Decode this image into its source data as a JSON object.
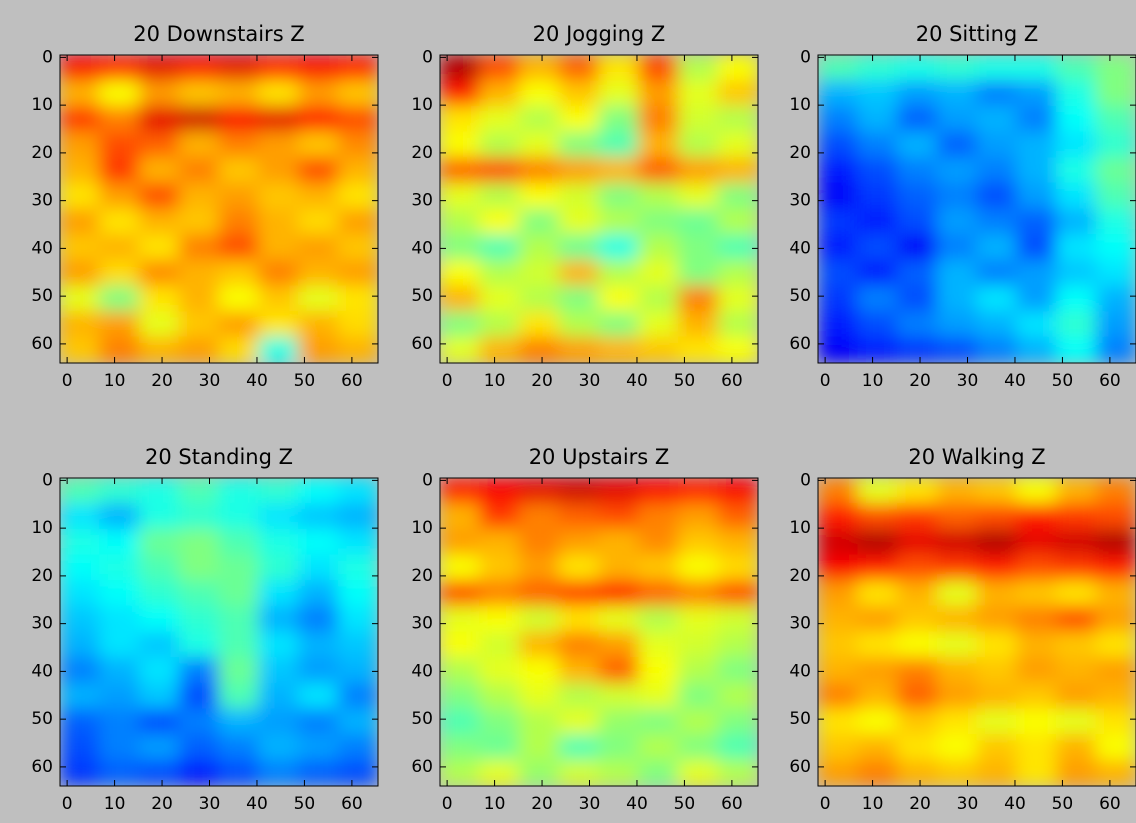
{
  "chart_data": [
    {
      "type": "heatmap",
      "title": "20 Downstairs Z",
      "colormap": "jet",
      "xlim": [
        -1.5,
        65.5
      ],
      "ylim": [
        64,
        -0.5
      ],
      "xticks": [
        0,
        10,
        20,
        30,
        40,
        50,
        60
      ],
      "yticks": [
        0,
        10,
        20,
        30,
        40,
        50,
        60
      ],
      "values": [
        [
          0.88,
          0.85,
          0.9,
          0.88,
          0.9,
          0.85,
          0.88,
          0.85
        ],
        [
          0.7,
          0.62,
          0.72,
          0.68,
          0.7,
          0.65,
          0.72,
          0.68
        ],
        [
          0.82,
          0.75,
          0.9,
          0.92,
          0.88,
          0.9,
          0.85,
          0.8
        ],
        [
          0.72,
          0.8,
          0.78,
          0.7,
          0.75,
          0.72,
          0.68,
          0.74
        ],
        [
          0.7,
          0.82,
          0.7,
          0.75,
          0.68,
          0.72,
          0.8,
          0.7
        ],
        [
          0.65,
          0.72,
          0.8,
          0.7,
          0.72,
          0.68,
          0.7,
          0.65
        ],
        [
          0.72,
          0.65,
          0.7,
          0.68,
          0.75,
          0.7,
          0.66,
          0.72
        ],
        [
          0.68,
          0.7,
          0.65,
          0.75,
          0.8,
          0.7,
          0.72,
          0.68
        ],
        [
          0.72,
          0.66,
          0.74,
          0.7,
          0.68,
          0.75,
          0.7,
          0.72
        ],
        [
          0.6,
          0.5,
          0.65,
          0.7,
          0.62,
          0.68,
          0.6,
          0.65
        ],
        [
          0.7,
          0.72,
          0.6,
          0.68,
          0.72,
          0.65,
          0.7,
          0.66
        ],
        [
          0.68,
          0.75,
          0.7,
          0.72,
          0.66,
          0.4,
          0.72,
          0.7
        ]
      ]
    },
    {
      "type": "heatmap",
      "title": "20 Jogging Z",
      "colormap": "jet",
      "xlim": [
        -1.5,
        65.5
      ],
      "ylim": [
        64,
        -0.5
      ],
      "xticks": [
        0,
        10,
        20,
        30,
        40,
        50,
        60
      ],
      "yticks": [
        0,
        10,
        20,
        30,
        40,
        50,
        60
      ],
      "values": [
        [
          0.95,
          0.8,
          0.7,
          0.78,
          0.65,
          0.8,
          0.55,
          0.62
        ],
        [
          0.85,
          0.7,
          0.62,
          0.68,
          0.6,
          0.72,
          0.6,
          0.68
        ],
        [
          0.65,
          0.6,
          0.55,
          0.62,
          0.5,
          0.75,
          0.58,
          0.55
        ],
        [
          0.62,
          0.55,
          0.6,
          0.5,
          0.45,
          0.7,
          0.55,
          0.6
        ],
        [
          0.78,
          0.8,
          0.75,
          0.72,
          0.7,
          0.78,
          0.72,
          0.7
        ],
        [
          0.6,
          0.55,
          0.62,
          0.58,
          0.5,
          0.55,
          0.6,
          0.5
        ],
        [
          0.55,
          0.62,
          0.5,
          0.6,
          0.55,
          0.5,
          0.48,
          0.55
        ],
        [
          0.5,
          0.45,
          0.55,
          0.48,
          0.4,
          0.55,
          0.5,
          0.45
        ],
        [
          0.62,
          0.55,
          0.58,
          0.7,
          0.55,
          0.6,
          0.5,
          0.55
        ],
        [
          0.7,
          0.6,
          0.55,
          0.5,
          0.62,
          0.55,
          0.75,
          0.6
        ],
        [
          0.5,
          0.55,
          0.65,
          0.55,
          0.5,
          0.6,
          0.7,
          0.55
        ],
        [
          0.6,
          0.7,
          0.75,
          0.72,
          0.7,
          0.68,
          0.65,
          0.62
        ]
      ]
    },
    {
      "type": "heatmap",
      "title": "20 Sitting Z",
      "colormap": "jet",
      "xlim": [
        -1.5,
        65.5
      ],
      "ylim": [
        64,
        -0.5
      ],
      "xticks": [
        0,
        10,
        20,
        30,
        40,
        50,
        60
      ],
      "yticks": [
        0,
        10,
        20,
        30,
        40,
        50,
        60
      ],
      "values": [
        [
          0.45,
          0.42,
          0.4,
          0.42,
          0.4,
          0.4,
          0.45,
          0.5
        ],
        [
          0.3,
          0.32,
          0.28,
          0.3,
          0.25,
          0.28,
          0.4,
          0.5
        ],
        [
          0.25,
          0.3,
          0.22,
          0.28,
          0.3,
          0.25,
          0.38,
          0.45
        ],
        [
          0.2,
          0.25,
          0.3,
          0.22,
          0.28,
          0.3,
          0.35,
          0.42
        ],
        [
          0.15,
          0.2,
          0.25,
          0.28,
          0.25,
          0.3,
          0.4,
          0.48
        ],
        [
          0.12,
          0.18,
          0.22,
          0.25,
          0.2,
          0.28,
          0.35,
          0.45
        ],
        [
          0.18,
          0.15,
          0.2,
          0.28,
          0.25,
          0.22,
          0.3,
          0.4
        ],
        [
          0.15,
          0.2,
          0.12,
          0.25,
          0.3,
          0.2,
          0.35,
          0.38
        ],
        [
          0.2,
          0.15,
          0.22,
          0.3,
          0.25,
          0.28,
          0.32,
          0.35
        ],
        [
          0.18,
          0.25,
          0.2,
          0.3,
          0.35,
          0.28,
          0.38,
          0.3
        ],
        [
          0.15,
          0.2,
          0.25,
          0.28,
          0.3,
          0.35,
          0.42,
          0.28
        ],
        [
          0.12,
          0.15,
          0.18,
          0.2,
          0.25,
          0.3,
          0.38,
          0.25
        ]
      ]
    },
    {
      "type": "heatmap",
      "title": "20 Standing Z",
      "colormap": "jet",
      "xlim": [
        -1.5,
        65.5
      ],
      "ylim": [
        64,
        -0.5
      ],
      "xticks": [
        0,
        10,
        20,
        30,
        40,
        50,
        60
      ],
      "yticks": [
        0,
        10,
        20,
        30,
        40,
        50,
        60
      ],
      "values": [
        [
          0.45,
          0.42,
          0.4,
          0.45,
          0.4,
          0.42,
          0.38,
          0.35
        ],
        [
          0.35,
          0.3,
          0.4,
          0.42,
          0.4,
          0.35,
          0.32,
          0.3
        ],
        [
          0.4,
          0.38,
          0.48,
          0.5,
          0.45,
          0.4,
          0.38,
          0.35
        ],
        [
          0.38,
          0.4,
          0.45,
          0.5,
          0.48,
          0.42,
          0.35,
          0.4
        ],
        [
          0.35,
          0.38,
          0.42,
          0.45,
          0.48,
          0.35,
          0.3,
          0.38
        ],
        [
          0.32,
          0.35,
          0.38,
          0.42,
          0.45,
          0.3,
          0.25,
          0.35
        ],
        [
          0.3,
          0.35,
          0.32,
          0.4,
          0.45,
          0.35,
          0.3,
          0.32
        ],
        [
          0.25,
          0.3,
          0.35,
          0.25,
          0.48,
          0.32,
          0.28,
          0.3
        ],
        [
          0.3,
          0.28,
          0.32,
          0.2,
          0.45,
          0.3,
          0.35,
          0.25
        ],
        [
          0.22,
          0.25,
          0.2,
          0.25,
          0.3,
          0.28,
          0.25,
          0.3
        ],
        [
          0.2,
          0.25,
          0.28,
          0.22,
          0.25,
          0.3,
          0.28,
          0.25
        ],
        [
          0.18,
          0.22,
          0.2,
          0.15,
          0.2,
          0.25,
          0.22,
          0.2
        ]
      ]
    },
    {
      "type": "heatmap",
      "title": "20 Upstairs Z",
      "colormap": "jet",
      "xlim": [
        -1.5,
        65.5
      ],
      "ylim": [
        64,
        -0.5
      ],
      "xticks": [
        0,
        10,
        20,
        30,
        40,
        50,
        60
      ],
      "yticks": [
        0,
        10,
        20,
        30,
        40,
        50,
        60
      ],
      "values": [
        [
          0.85,
          0.88,
          0.9,
          0.92,
          0.9,
          0.88,
          0.85,
          0.88
        ],
        [
          0.7,
          0.82,
          0.75,
          0.78,
          0.8,
          0.75,
          0.72,
          0.78
        ],
        [
          0.72,
          0.7,
          0.75,
          0.72,
          0.7,
          0.74,
          0.68,
          0.7
        ],
        [
          0.62,
          0.68,
          0.72,
          0.65,
          0.7,
          0.68,
          0.62,
          0.66
        ],
        [
          0.8,
          0.75,
          0.78,
          0.82,
          0.85,
          0.78,
          0.75,
          0.8
        ],
        [
          0.6,
          0.62,
          0.58,
          0.65,
          0.6,
          0.55,
          0.6,
          0.58
        ],
        [
          0.62,
          0.58,
          0.7,
          0.75,
          0.72,
          0.6,
          0.58,
          0.55
        ],
        [
          0.55,
          0.6,
          0.62,
          0.7,
          0.78,
          0.62,
          0.55,
          0.5
        ],
        [
          0.5,
          0.55,
          0.6,
          0.55,
          0.58,
          0.6,
          0.5,
          0.55
        ],
        [
          0.45,
          0.5,
          0.55,
          0.6,
          0.52,
          0.5,
          0.55,
          0.5
        ],
        [
          0.5,
          0.48,
          0.55,
          0.45,
          0.5,
          0.55,
          0.5,
          0.45
        ],
        [
          0.55,
          0.6,
          0.52,
          0.58,
          0.55,
          0.5,
          0.6,
          0.55
        ]
      ]
    },
    {
      "type": "heatmap",
      "title": "20 Walking Z",
      "colormap": "jet",
      "xlim": [
        -1.5,
        65.5
      ],
      "ylim": [
        64,
        -0.5
      ],
      "xticks": [
        0,
        10,
        20,
        30,
        40,
        50,
        60
      ],
      "yticks": [
        0,
        10,
        20,
        30,
        40,
        50,
        60
      ],
      "values": [
        [
          0.75,
          0.6,
          0.65,
          0.7,
          0.68,
          0.62,
          0.7,
          0.75
        ],
        [
          0.85,
          0.8,
          0.82,
          0.78,
          0.8,
          0.85,
          0.82,
          0.8
        ],
        [
          0.92,
          0.95,
          0.9,
          0.92,
          0.95,
          0.9,
          0.92,
          0.95
        ],
        [
          0.88,
          0.85,
          0.8,
          0.82,
          0.85,
          0.8,
          0.82,
          0.85
        ],
        [
          0.72,
          0.65,
          0.7,
          0.6,
          0.7,
          0.68,
          0.65,
          0.7
        ],
        [
          0.7,
          0.72,
          0.68,
          0.7,
          0.72,
          0.75,
          0.8,
          0.72
        ],
        [
          0.68,
          0.65,
          0.62,
          0.6,
          0.65,
          0.7,
          0.68,
          0.65
        ],
        [
          0.7,
          0.72,
          0.75,
          0.7,
          0.68,
          0.72,
          0.7,
          0.72
        ],
        [
          0.75,
          0.7,
          0.78,
          0.72,
          0.7,
          0.68,
          0.72,
          0.7
        ],
        [
          0.65,
          0.62,
          0.68,
          0.65,
          0.6,
          0.62,
          0.6,
          0.65
        ],
        [
          0.68,
          0.7,
          0.65,
          0.62,
          0.68,
          0.65,
          0.7,
          0.62
        ],
        [
          0.72,
          0.75,
          0.7,
          0.68,
          0.7,
          0.65,
          0.72,
          0.7
        ]
      ]
    }
  ]
}
